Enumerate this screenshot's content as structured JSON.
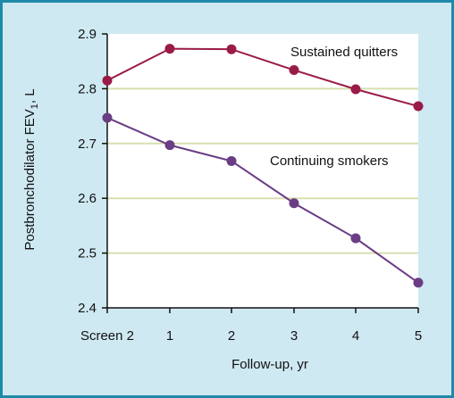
{
  "chart_data": {
    "type": "line",
    "x": [
      "Screen 2",
      "1",
      "2",
      "3",
      "4",
      "5"
    ],
    "xlabel": "Follow-up, yr",
    "ylabel_main": "Postbronchodilator FEV",
    "ylabel_sub": "1",
    "ylabel_unit": ", L",
    "ylim": [
      2.4,
      2.9
    ],
    "yticks": [
      "2.4",
      "2.5",
      "2.6",
      "2.7",
      "2.8",
      "2.9"
    ],
    "ytick_values": [
      2.4,
      2.5,
      2.6,
      2.7,
      2.8,
      2.9
    ],
    "grid": true,
    "series": [
      {
        "name": "Sustained quitters",
        "color": "#9a1b47",
        "values": [
          2.815,
          2.873,
          2.872,
          2.834,
          2.799,
          2.768
        ]
      },
      {
        "name": "Continuing smokers",
        "color": "#6a3d84",
        "values": [
          2.747,
          2.697,
          2.668,
          2.591,
          2.527,
          2.446
        ]
      }
    ]
  }
}
